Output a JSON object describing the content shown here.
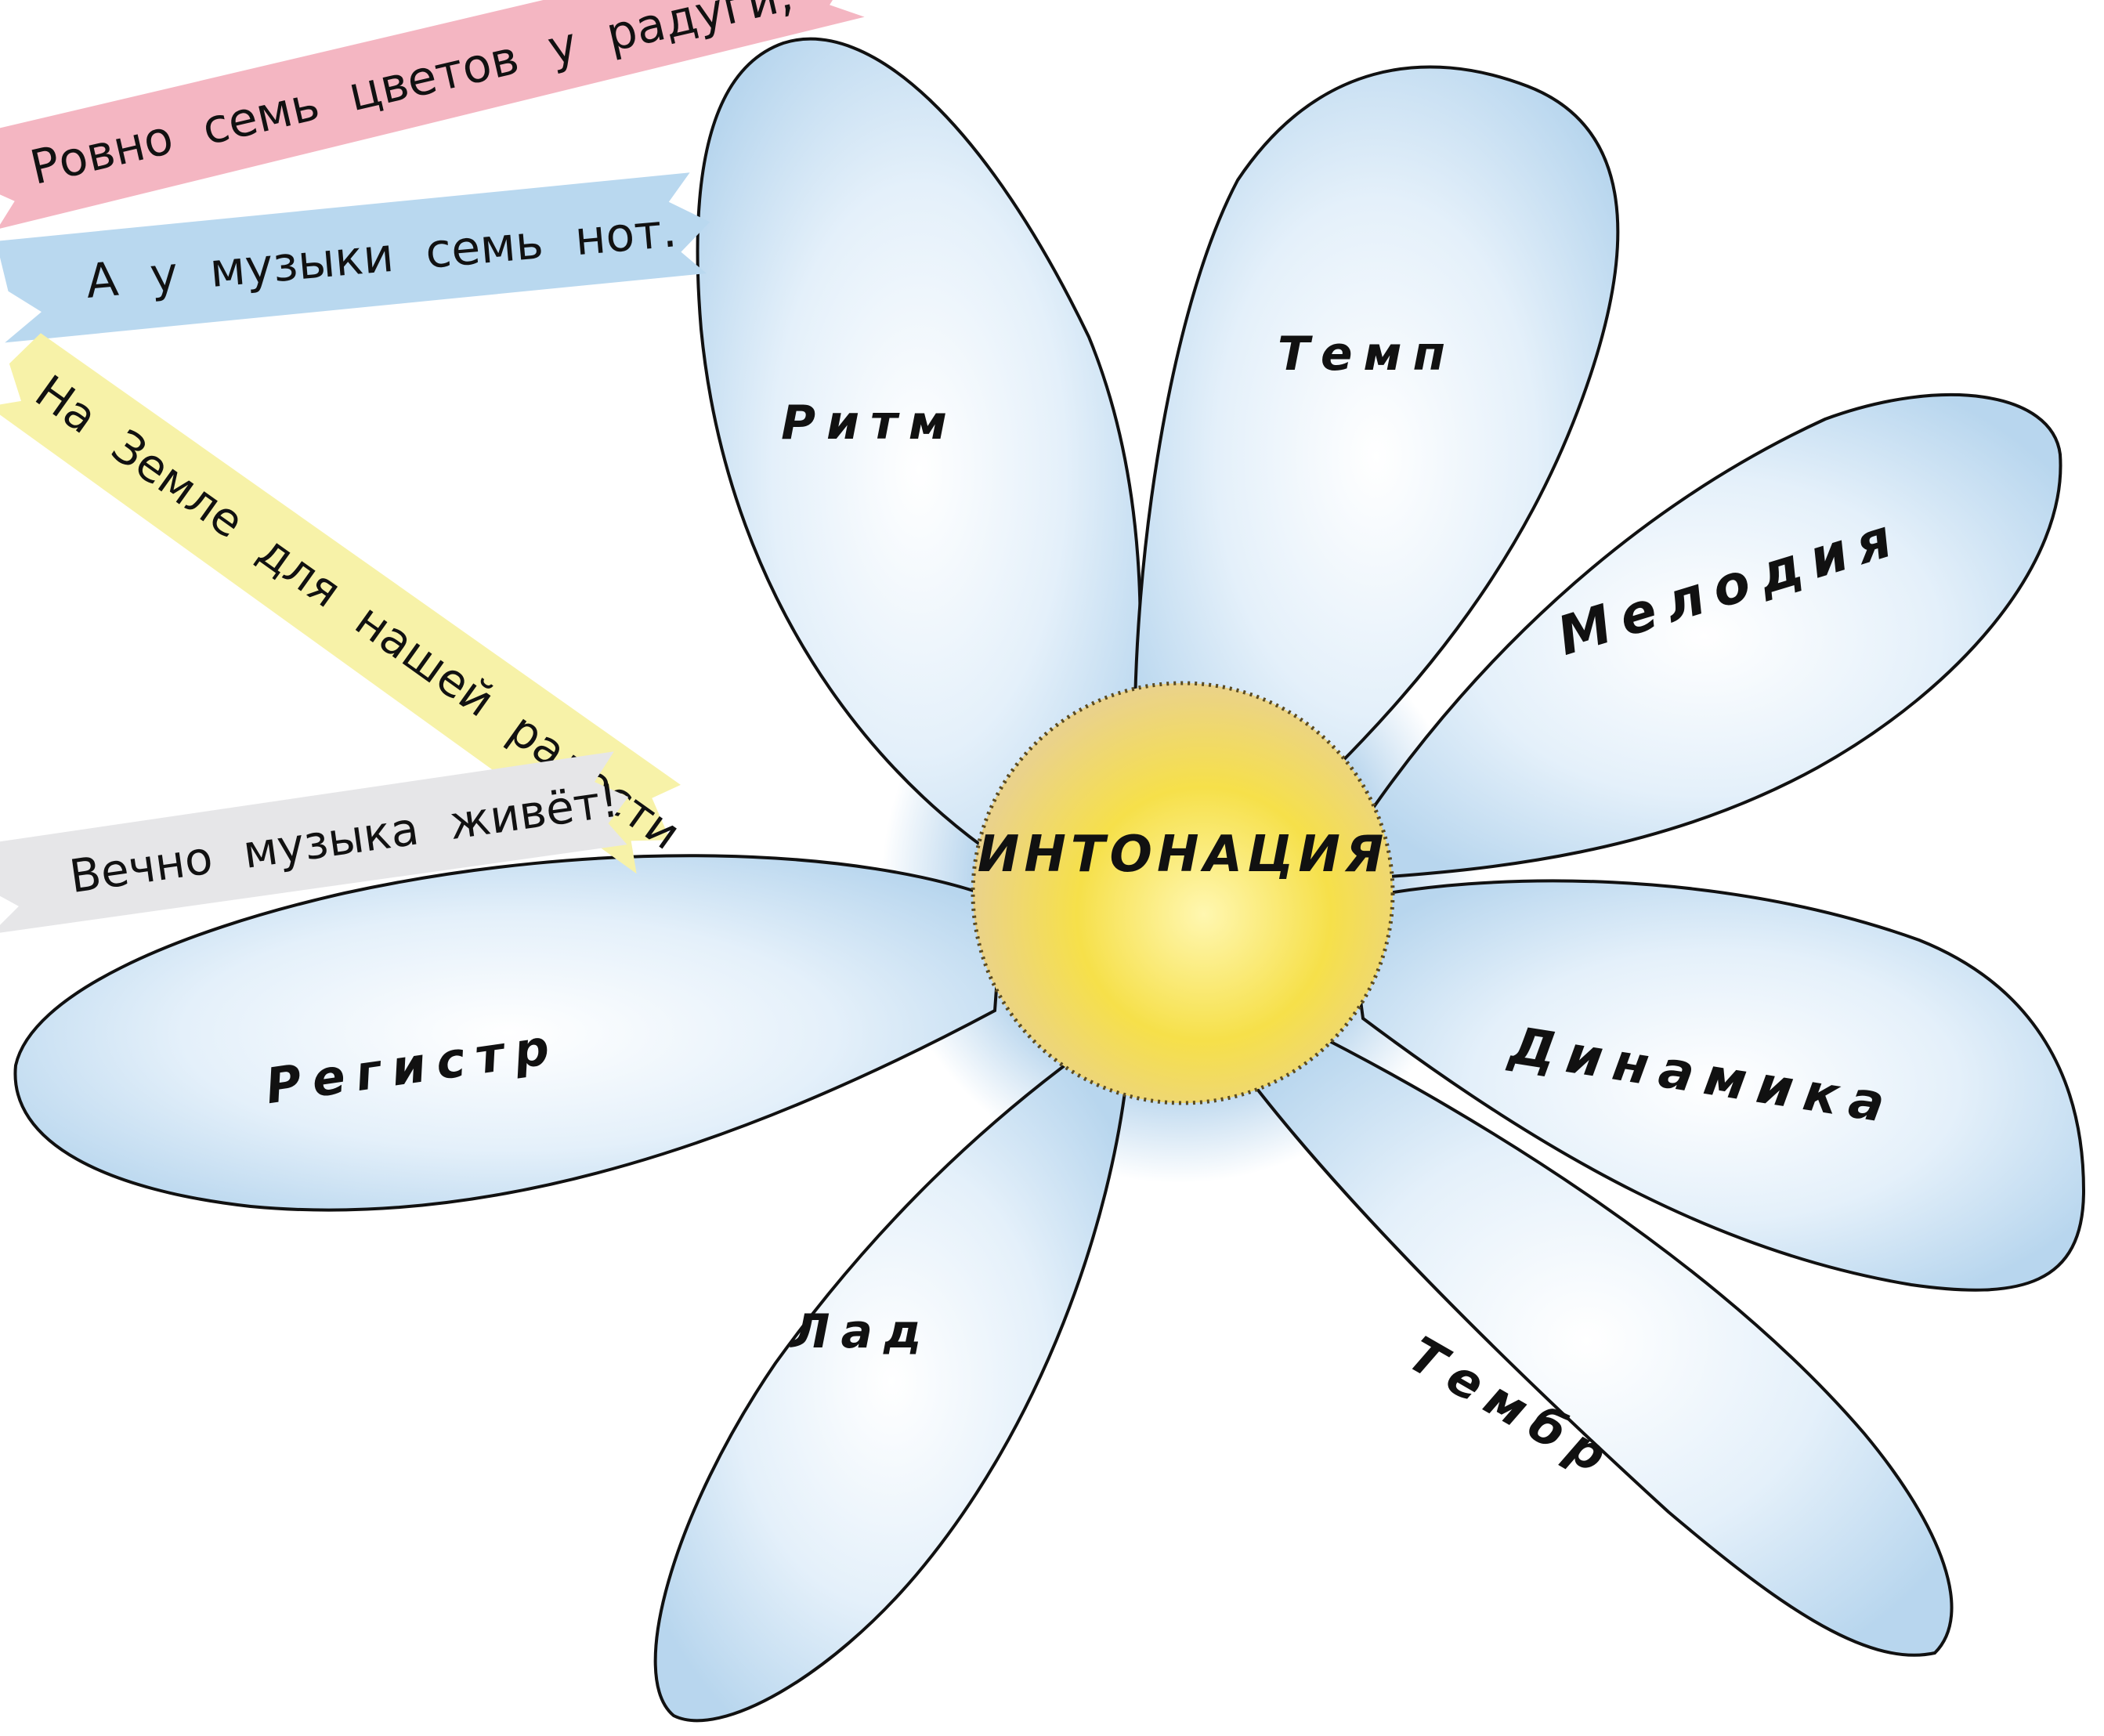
{
  "ribbons": [
    {
      "text": "Ровно семь цветов у радуги,",
      "color": "#f4b6c2"
    },
    {
      "text": "А у музыки семь нот.",
      "color": "#b9d8ef"
    },
    {
      "text": "На Земле для нашей радости",
      "color": "#f7f2a8"
    },
    {
      "text": "Вечно музыка живёт!",
      "color": "#e6e6e8"
    }
  ],
  "flower": {
    "center": "ИНТОНАЦИЯ",
    "petals": [
      "Ритм",
      "Темп",
      "Мелодия",
      "Динамика",
      "Тембр",
      "Лад",
      "Регистр"
    ],
    "petal_color": "#a9cde8",
    "center_color": "#f7e04a"
  }
}
